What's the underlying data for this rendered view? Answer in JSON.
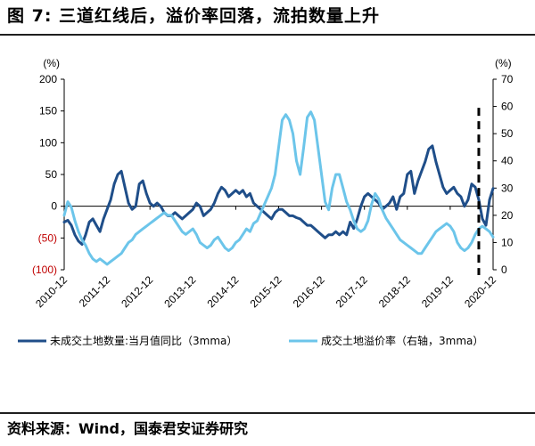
{
  "header": {
    "title": "图 7: 三道红线后，溢价率回落，流拍数量上升"
  },
  "footer": {
    "source": "资料来源：Wind，国泰君安证券研究"
  },
  "colors": {
    "dark_series": "#1f4e89",
    "light_series": "#6cc5ea",
    "negative_tick": "#c00000",
    "axis": "#000000"
  },
  "chart_data": {
    "type": "line",
    "left_axis": {
      "unit": "(%)",
      "ylim": [
        -100,
        200
      ],
      "ticks": [
        "200",
        "150",
        "100",
        "50",
        "0",
        "(50)",
        "(100)"
      ],
      "tick_values": [
        200,
        150,
        100,
        50,
        0,
        -50,
        -100
      ]
    },
    "right_axis": {
      "unit": "(%)",
      "ylim": [
        0,
        70
      ],
      "ticks": [
        "70",
        "60",
        "50",
        "40",
        "30",
        "20",
        "10",
        "0"
      ],
      "tick_values": [
        70,
        60,
        50,
        40,
        30,
        20,
        10,
        0
      ]
    },
    "x_tick_labels": [
      "2010-12",
      "2011-12",
      "2012-12",
      "2013-12",
      "2014-12",
      "2015-12",
      "2016-12",
      "2017-12",
      "2018-12",
      "2019-12",
      "2020-12"
    ],
    "x_range": [
      0,
      120
    ],
    "x_unit": "months since 2010-12",
    "marker_line": {
      "x": 116,
      "style": "dashed"
    },
    "series": [
      {
        "name": "未成交土地数量:当月值同比（3mma）",
        "axis": "left",
        "points": [
          [
            0,
            -25
          ],
          [
            1,
            -22
          ],
          [
            2,
            -30
          ],
          [
            3,
            -45
          ],
          [
            4,
            -55
          ],
          [
            5,
            -60
          ],
          [
            6,
            -45
          ],
          [
            7,
            -25
          ],
          [
            8,
            -20
          ],
          [
            9,
            -30
          ],
          [
            10,
            -40
          ],
          [
            11,
            -20
          ],
          [
            12,
            -5
          ],
          [
            13,
            10
          ],
          [
            14,
            35
          ],
          [
            15,
            50
          ],
          [
            16,
            55
          ],
          [
            17,
            30
          ],
          [
            18,
            5
          ],
          [
            19,
            -5
          ],
          [
            20,
            0
          ],
          [
            21,
            35
          ],
          [
            22,
            40
          ],
          [
            23,
            20
          ],
          [
            24,
            5
          ],
          [
            25,
            0
          ],
          [
            26,
            5
          ],
          [
            27,
            0
          ],
          [
            28,
            -10
          ],
          [
            29,
            -15
          ],
          [
            30,
            -15
          ],
          [
            31,
            -10
          ],
          [
            32,
            -15
          ],
          [
            33,
            -20
          ],
          [
            34,
            -15
          ],
          [
            35,
            -10
          ],
          [
            36,
            -5
          ],
          [
            37,
            5
          ],
          [
            38,
            0
          ],
          [
            39,
            -15
          ],
          [
            40,
            -10
          ],
          [
            41,
            -5
          ],
          [
            42,
            5
          ],
          [
            43,
            20
          ],
          [
            44,
            30
          ],
          [
            45,
            25
          ],
          [
            46,
            15
          ],
          [
            47,
            20
          ],
          [
            48,
            25
          ],
          [
            49,
            20
          ],
          [
            50,
            25
          ],
          [
            51,
            15
          ],
          [
            52,
            20
          ],
          [
            53,
            5
          ],
          [
            54,
            0
          ],
          [
            55,
            -5
          ],
          [
            56,
            -10
          ],
          [
            57,
            -15
          ],
          [
            58,
            -20
          ],
          [
            59,
            -10
          ],
          [
            60,
            -5
          ],
          [
            61,
            -5
          ],
          [
            62,
            -10
          ],
          [
            63,
            -15
          ],
          [
            64,
            -15
          ],
          [
            65,
            -18
          ],
          [
            66,
            -20
          ],
          [
            67,
            -25
          ],
          [
            68,
            -30
          ],
          [
            69,
            -30
          ],
          [
            70,
            -35
          ],
          [
            71,
            -40
          ],
          [
            72,
            -45
          ],
          [
            73,
            -50
          ],
          [
            74,
            -45
          ],
          [
            75,
            -45
          ],
          [
            76,
            -40
          ],
          [
            77,
            -45
          ],
          [
            78,
            -40
          ],
          [
            79,
            -45
          ],
          [
            80,
            -25
          ],
          [
            81,
            -35
          ],
          [
            82,
            -20
          ],
          [
            83,
            0
          ],
          [
            84,
            15
          ],
          [
            85,
            20
          ],
          [
            86,
            15
          ],
          [
            87,
            10
          ],
          [
            88,
            5
          ],
          [
            89,
            -5
          ],
          [
            90,
            0
          ],
          [
            91,
            5
          ],
          [
            92,
            15
          ],
          [
            93,
            -5
          ],
          [
            94,
            15
          ],
          [
            95,
            20
          ],
          [
            96,
            50
          ],
          [
            97,
            55
          ],
          [
            98,
            20
          ],
          [
            99,
            40
          ],
          [
            100,
            55
          ],
          [
            101,
            70
          ],
          [
            102,
            90
          ],
          [
            103,
            95
          ],
          [
            104,
            70
          ],
          [
            105,
            50
          ],
          [
            106,
            30
          ],
          [
            107,
            20
          ],
          [
            108,
            25
          ],
          [
            109,
            30
          ],
          [
            110,
            20
          ],
          [
            111,
            15
          ],
          [
            112,
            0
          ],
          [
            113,
            10
          ],
          [
            114,
            35
          ],
          [
            115,
            30
          ],
          [
            116,
            10
          ],
          [
            117,
            -20
          ],
          [
            118,
            -30
          ],
          [
            119,
            10
          ],
          [
            120,
            28
          ]
        ]
      },
      {
        "name": "成交土地溢价率（右轴，3mma）",
        "axis": "right",
        "points": [
          [
            0,
            20
          ],
          [
            1,
            25
          ],
          [
            2,
            23
          ],
          [
            3,
            18
          ],
          [
            4,
            14
          ],
          [
            5,
            11
          ],
          [
            6,
            9
          ],
          [
            7,
            6
          ],
          [
            8,
            4
          ],
          [
            9,
            3
          ],
          [
            10,
            4
          ],
          [
            11,
            3
          ],
          [
            12,
            2
          ],
          [
            13,
            3
          ],
          [
            14,
            4
          ],
          [
            15,
            5
          ],
          [
            16,
            6
          ],
          [
            17,
            8
          ],
          [
            18,
            10
          ],
          [
            19,
            11
          ],
          [
            20,
            13
          ],
          [
            21,
            14
          ],
          [
            22,
            15
          ],
          [
            23,
            16
          ],
          [
            24,
            17
          ],
          [
            25,
            18
          ],
          [
            26,
            19
          ],
          [
            27,
            20
          ],
          [
            28,
            21
          ],
          [
            29,
            20
          ],
          [
            30,
            20
          ],
          [
            31,
            18
          ],
          [
            32,
            16
          ],
          [
            33,
            14
          ],
          [
            34,
            13
          ],
          [
            35,
            14
          ],
          [
            36,
            15
          ],
          [
            37,
            13
          ],
          [
            38,
            10
          ],
          [
            39,
            9
          ],
          [
            40,
            8
          ],
          [
            41,
            9
          ],
          [
            42,
            11
          ],
          [
            43,
            12
          ],
          [
            44,
            10
          ],
          [
            45,
            8
          ],
          [
            46,
            7
          ],
          [
            47,
            8
          ],
          [
            48,
            10
          ],
          [
            49,
            11
          ],
          [
            50,
            13
          ],
          [
            51,
            15
          ],
          [
            52,
            14
          ],
          [
            53,
            17
          ],
          [
            54,
            18
          ],
          [
            55,
            21
          ],
          [
            56,
            24
          ],
          [
            57,
            27
          ],
          [
            58,
            30
          ],
          [
            59,
            35
          ],
          [
            60,
            45
          ],
          [
            61,
            55
          ],
          [
            62,
            57
          ],
          [
            63,
            55
          ],
          [
            64,
            50
          ],
          [
            65,
            40
          ],
          [
            66,
            35
          ],
          [
            67,
            45
          ],
          [
            68,
            56
          ],
          [
            69,
            58
          ],
          [
            70,
            55
          ],
          [
            71,
            45
          ],
          [
            72,
            35
          ],
          [
            73,
            25
          ],
          [
            74,
            22
          ],
          [
            75,
            30
          ],
          [
            76,
            35
          ],
          [
            77,
            35
          ],
          [
            78,
            30
          ],
          [
            79,
            25
          ],
          [
            80,
            22
          ],
          [
            81,
            18
          ],
          [
            82,
            15
          ],
          [
            83,
            14
          ],
          [
            84,
            15
          ],
          [
            85,
            18
          ],
          [
            86,
            24
          ],
          [
            87,
            28
          ],
          [
            88,
            26
          ],
          [
            89,
            22
          ],
          [
            90,
            19
          ],
          [
            91,
            17
          ],
          [
            92,
            15
          ],
          [
            93,
            13
          ],
          [
            94,
            11
          ],
          [
            95,
            10
          ],
          [
            96,
            9
          ],
          [
            97,
            8
          ],
          [
            98,
            7
          ],
          [
            99,
            6
          ],
          [
            100,
            6
          ],
          [
            101,
            8
          ],
          [
            102,
            10
          ],
          [
            103,
            12
          ],
          [
            104,
            14
          ],
          [
            105,
            15
          ],
          [
            106,
            16
          ],
          [
            107,
            17
          ],
          [
            108,
            16
          ],
          [
            109,
            14
          ],
          [
            110,
            10
          ],
          [
            111,
            8
          ],
          [
            112,
            7
          ],
          [
            113,
            8
          ],
          [
            114,
            10
          ],
          [
            115,
            13
          ],
          [
            116,
            15
          ],
          [
            117,
            16
          ],
          [
            118,
            15
          ],
          [
            119,
            14
          ],
          [
            120,
            12
          ]
        ]
      }
    ]
  }
}
